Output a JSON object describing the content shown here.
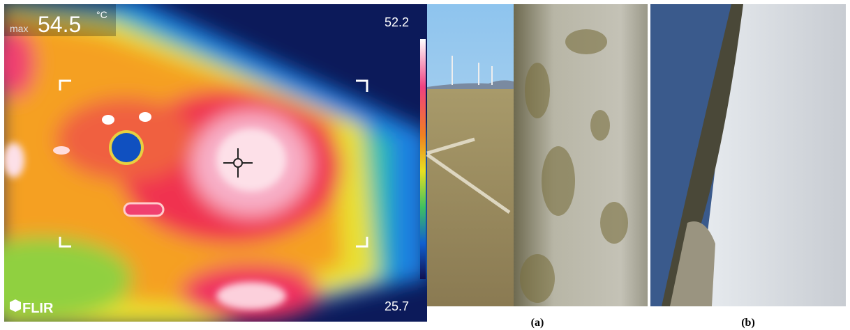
{
  "thermal": {
    "max_label": "max",
    "max_value": 54.5,
    "unit": "°C",
    "scale_top": 52.2,
    "scale_bottom": 25.7,
    "brand": "FLIR"
  },
  "photos": {
    "a_caption": "(a)",
    "b_caption": "(b)"
  }
}
